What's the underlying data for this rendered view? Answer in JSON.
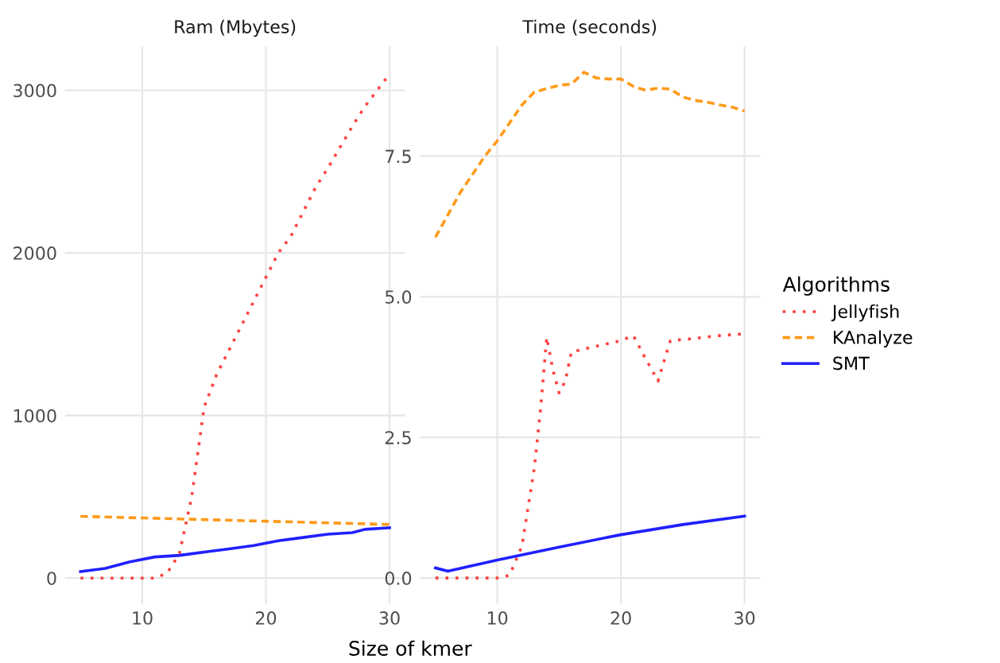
{
  "chart_data": [
    {
      "type": "line",
      "title": "Ram (Mbytes)",
      "xlabel": "Size of kmer",
      "xlim": [
        3.75,
        31.25
      ],
      "xticks": [
        10,
        20,
        30
      ],
      "ylim": [
        -155,
        3270
      ],
      "yticks": [
        0,
        1000,
        2000,
        3000
      ],
      "grid": true,
      "series": [
        {
          "color": "#ff4040",
          "line_style": "dotted",
          "x": [
            5,
            6,
            7,
            8,
            9,
            10,
            11,
            12,
            13,
            14,
            15,
            16,
            17,
            18,
            19,
            20,
            21,
            22,
            23,
            24,
            25,
            26,
            27,
            28,
            29,
            30
          ],
          "values": [
            0,
            0,
            0,
            0,
            0,
            0,
            0,
            30,
            150,
            500,
            1050,
            1250,
            1400,
            1550,
            1700,
            1850,
            2000,
            2100,
            2250,
            2400,
            2520,
            2650,
            2780,
            2900,
            3000,
            3100
          ]
        },
        {
          "color": "#ff9a1a",
          "line_style": "dashed",
          "x": [
            5,
            10,
            15,
            20,
            25,
            30
          ],
          "values": [
            380,
            370,
            360,
            350,
            340,
            330
          ]
        },
        {
          "color": "#2020ff",
          "line_style": "solid",
          "x": [
            5,
            7,
            9,
            11,
            13,
            15,
            17,
            19,
            21,
            23,
            25,
            27,
            28,
            30
          ],
          "values": [
            40,
            60,
            100,
            130,
            140,
            160,
            180,
            200,
            230,
            250,
            270,
            280,
            300,
            310
          ]
        }
      ]
    },
    {
      "type": "line",
      "title": "Time (seconds)",
      "legend_title": "Algorithms",
      "xlim": [
        3.75,
        31.25
      ],
      "xticks": [
        10,
        20,
        30
      ],
      "ylim": [
        -0.45,
        9.45
      ],
      "yticks": [
        {
          "value": 0,
          "label": "0.0"
        },
        2.5,
        {
          "value": 5,
          "label": "5.0"
        },
        7.5
      ],
      "grid": true,
      "legend": "right",
      "series": [
        {
          "name": "Jellyfish",
          "color": "#ff4040",
          "line_style": "dotted",
          "x": [
            5,
            6,
            7,
            8,
            9,
            10,
            11,
            12,
            13,
            13.5,
            14,
            14.5,
            15,
            15.5,
            16,
            18,
            20,
            21,
            22,
            23,
            24,
            26,
            28,
            30
          ],
          "values": [
            0,
            0,
            0,
            0,
            0,
            0,
            0.05,
            0.57,
            1.96,
            3.0,
            4.28,
            3.7,
            3.29,
            3.5,
            4.02,
            4.12,
            4.22,
            4.31,
            3.9,
            3.5,
            4.22,
            4.26,
            4.31,
            4.34
          ]
        },
        {
          "name": "KAnalyze",
          "color": "#ff9a1a",
          "line_style": "dashed",
          "x": [
            5,
            7,
            9,
            10,
            12,
            13,
            15,
            16,
            17,
            18,
            19,
            20,
            21,
            22,
            23,
            24,
            25,
            26,
            27,
            28,
            29,
            30
          ],
          "values": [
            6.06,
            6.85,
            7.5,
            7.77,
            8.41,
            8.64,
            8.76,
            8.78,
            8.99,
            8.89,
            8.87,
            8.87,
            8.74,
            8.67,
            8.71,
            8.69,
            8.55,
            8.49,
            8.46,
            8.41,
            8.37,
            8.3
          ]
        },
        {
          "name": "SMT",
          "color": "#2020ff",
          "line_style": "solid",
          "x": [
            5,
            6,
            10,
            15,
            20,
            25,
            30
          ],
          "values": [
            0.18,
            0.12,
            0.32,
            0.55,
            0.77,
            0.95,
            1.1
          ]
        }
      ]
    }
  ]
}
